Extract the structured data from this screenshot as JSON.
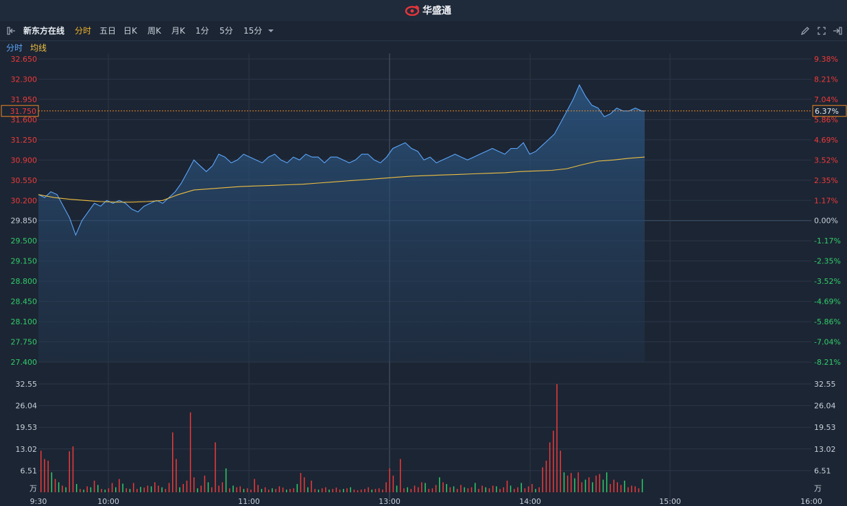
{
  "header": {
    "brand": "华盛通"
  },
  "toolbar": {
    "stock_name": "新东方在线",
    "tabs": [
      "分时",
      "五日",
      "日K",
      "周K",
      "月K",
      "1分",
      "5分",
      "15分"
    ],
    "active_tab": "分时"
  },
  "legend": {
    "intraday": "分时",
    "avg": "均线"
  },
  "colors": {
    "up": "#f03a3a",
    "down": "#2fcf6a",
    "price_line": "#5ba8ff",
    "avg_line": "#f0c040",
    "crosshair": "#f08a24"
  },
  "chart_data": {
    "type": "line",
    "price_axis": {
      "ticks": [
        "32.650",
        "32.300",
        "31.950",
        "31.600",
        "31.250",
        "30.900",
        "30.550",
        "30.200",
        "29.850",
        "29.500",
        "29.150",
        "28.800",
        "28.450",
        "28.100",
        "27.750",
        "27.400"
      ],
      "values": [
        32.65,
        32.3,
        31.95,
        31.6,
        31.25,
        30.9,
        30.55,
        30.2,
        29.85,
        29.5,
        29.15,
        28.8,
        28.45,
        28.1,
        27.75,
        27.4
      ],
      "prev_close": 29.85
    },
    "pct_axis": {
      "ticks": [
        "9.38%",
        "8.21%",
        "7.04%",
        "5.86%",
        "4.69%",
        "3.52%",
        "2.35%",
        "1.17%",
        "0.00%",
        "-1.17%",
        "-2.35%",
        "-3.52%",
        "-4.69%",
        "-5.86%",
        "-7.04%",
        "-8.21%"
      ]
    },
    "volume_axis": {
      "ticks": [
        "32.55",
        "26.04",
        "19.53",
        "13.02",
        "6.51",
        "万"
      ],
      "max": 32.55
    },
    "x_axis": {
      "labels": [
        "9:30",
        "10:00",
        "11:00",
        "13:00",
        "14:00",
        "15:00",
        "16:00"
      ]
    },
    "crosshair": {
      "price": "31.750",
      "pct": "6.37%"
    },
    "series": [
      {
        "name": "分时",
        "points": [
          [
            0,
            30.3
          ],
          [
            2,
            30.25
          ],
          [
            4,
            30.35
          ],
          [
            6,
            30.3
          ],
          [
            8,
            30.1
          ],
          [
            10,
            29.9
          ],
          [
            12,
            29.6
          ],
          [
            14,
            29.85
          ],
          [
            16,
            30.0
          ],
          [
            18,
            30.15
          ],
          [
            20,
            30.1
          ],
          [
            22,
            30.2
          ],
          [
            24,
            30.15
          ],
          [
            26,
            30.2
          ],
          [
            28,
            30.15
          ],
          [
            30,
            30.05
          ],
          [
            32,
            30.0
          ],
          [
            34,
            30.1
          ],
          [
            36,
            30.15
          ],
          [
            38,
            30.2
          ],
          [
            40,
            30.15
          ],
          [
            42,
            30.25
          ],
          [
            44,
            30.35
          ],
          [
            46,
            30.5
          ],
          [
            48,
            30.7
          ],
          [
            50,
            30.9
          ],
          [
            52,
            30.8
          ],
          [
            54,
            30.7
          ],
          [
            56,
            30.8
          ],
          [
            58,
            31.0
          ],
          [
            60,
            30.95
          ],
          [
            62,
            30.85
          ],
          [
            64,
            30.9
          ],
          [
            66,
            31.0
          ],
          [
            68,
            30.95
          ],
          [
            70,
            30.9
          ],
          [
            72,
            30.85
          ],
          [
            74,
            30.95
          ],
          [
            76,
            31.0
          ],
          [
            78,
            30.9
          ],
          [
            80,
            30.85
          ],
          [
            82,
            30.95
          ],
          [
            84,
            30.9
          ],
          [
            86,
            31.0
          ],
          [
            88,
            30.95
          ],
          [
            90,
            30.95
          ],
          [
            92,
            30.85
          ],
          [
            94,
            30.95
          ],
          [
            96,
            30.95
          ],
          [
            98,
            30.9
          ],
          [
            100,
            30.85
          ],
          [
            102,
            30.9
          ],
          [
            104,
            31.0
          ],
          [
            106,
            31.0
          ],
          [
            108,
            30.9
          ],
          [
            110,
            30.85
          ],
          [
            112,
            30.95
          ],
          [
            114,
            31.1
          ],
          [
            116,
            31.15
          ],
          [
            118,
            31.2
          ],
          [
            120,
            31.1
          ],
          [
            122,
            31.05
          ],
          [
            124,
            30.9
          ],
          [
            126,
            30.95
          ],
          [
            128,
            30.85
          ],
          [
            130,
            30.9
          ],
          [
            132,
            30.95
          ],
          [
            134,
            31.0
          ],
          [
            136,
            30.95
          ],
          [
            138,
            30.9
          ],
          [
            140,
            30.95
          ],
          [
            142,
            31.0
          ],
          [
            144,
            31.05
          ],
          [
            146,
            31.1
          ],
          [
            148,
            31.05
          ],
          [
            150,
            31.0
          ],
          [
            152,
            31.1
          ],
          [
            154,
            31.1
          ],
          [
            156,
            31.2
          ],
          [
            158,
            31.0
          ],
          [
            160,
            31.05
          ],
          [
            162,
            31.15
          ],
          [
            164,
            31.25
          ],
          [
            166,
            31.35
          ],
          [
            168,
            31.55
          ],
          [
            170,
            31.75
          ],
          [
            172,
            31.95
          ],
          [
            174,
            32.2
          ],
          [
            176,
            32.0
          ],
          [
            178,
            31.85
          ],
          [
            180,
            31.8
          ],
          [
            182,
            31.65
          ],
          [
            184,
            31.7
          ],
          [
            186,
            31.8
          ],
          [
            188,
            31.75
          ],
          [
            190,
            31.75
          ],
          [
            192,
            31.8
          ],
          [
            194,
            31.75
          ],
          [
            195,
            31.75
          ]
        ]
      },
      {
        "name": "均线",
        "points": [
          [
            0,
            30.3
          ],
          [
            5,
            30.25
          ],
          [
            10,
            30.22
          ],
          [
            15,
            30.2
          ],
          [
            20,
            30.18
          ],
          [
            25,
            30.17
          ],
          [
            30,
            30.17
          ],
          [
            35,
            30.18
          ],
          [
            40,
            30.2
          ],
          [
            45,
            30.3
          ],
          [
            50,
            30.38
          ],
          [
            55,
            30.4
          ],
          [
            60,
            30.42
          ],
          [
            65,
            30.44
          ],
          [
            70,
            30.45
          ],
          [
            75,
            30.46
          ],
          [
            80,
            30.47
          ],
          [
            85,
            30.48
          ],
          [
            90,
            30.5
          ],
          [
            95,
            30.52
          ],
          [
            100,
            30.54
          ],
          [
            105,
            30.56
          ],
          [
            110,
            30.58
          ],
          [
            115,
            30.6
          ],
          [
            120,
            30.62
          ],
          [
            125,
            30.63
          ],
          [
            130,
            30.64
          ],
          [
            135,
            30.65
          ],
          [
            140,
            30.66
          ],
          [
            145,
            30.67
          ],
          [
            150,
            30.68
          ],
          [
            155,
            30.7
          ],
          [
            160,
            30.71
          ],
          [
            165,
            30.72
          ],
          [
            170,
            30.75
          ],
          [
            175,
            30.82
          ],
          [
            180,
            30.88
          ],
          [
            185,
            30.9
          ],
          [
            190,
            30.93
          ],
          [
            195,
            30.95
          ]
        ]
      }
    ],
    "volume": [
      [
        12.5,
        1
      ],
      [
        10.0,
        1
      ],
      [
        9.5,
        1
      ],
      [
        6.0,
        0
      ],
      [
        4.0,
        1
      ],
      [
        3.0,
        0
      ],
      [
        2.0,
        1
      ],
      [
        1.5,
        0
      ],
      [
        12.3,
        1
      ],
      [
        13.8,
        1
      ],
      [
        2.5,
        0
      ],
      [
        1.0,
        1
      ],
      [
        0.8,
        0
      ],
      [
        1.8,
        1
      ],
      [
        1.5,
        0
      ],
      [
        3.5,
        1
      ],
      [
        2.2,
        0
      ],
      [
        1.0,
        1
      ],
      [
        0.8,
        0
      ],
      [
        1.2,
        1
      ],
      [
        2.8,
        1
      ],
      [
        1.5,
        0
      ],
      [
        4.0,
        1
      ],
      [
        2.6,
        0
      ],
      [
        1.2,
        1
      ],
      [
        1.0,
        0
      ],
      [
        2.8,
        1
      ],
      [
        1.0,
        1
      ],
      [
        1.6,
        0
      ],
      [
        1.4,
        1
      ],
      [
        2.0,
        1
      ],
      [
        1.8,
        0
      ],
      [
        3.0,
        1
      ],
      [
        2.0,
        1
      ],
      [
        1.5,
        0
      ],
      [
        1.0,
        1
      ],
      [
        2.8,
        1
      ],
      [
        18.0,
        1
      ],
      [
        10.0,
        1
      ],
      [
        1.5,
        0
      ],
      [
        2.5,
        1
      ],
      [
        3.5,
        1
      ],
      [
        24.0,
        1
      ],
      [
        4.5,
        1
      ],
      [
        1.2,
        0
      ],
      [
        2.0,
        1
      ],
      [
        5.0,
        1
      ],
      [
        3.0,
        0
      ],
      [
        1.5,
        1
      ],
      [
        15.0,
        1
      ],
      [
        2.0,
        1
      ],
      [
        3.0,
        1
      ],
      [
        7.2,
        0
      ],
      [
        1.2,
        1
      ],
      [
        2.0,
        0
      ],
      [
        1.5,
        1
      ],
      [
        1.8,
        1
      ],
      [
        1.0,
        0
      ],
      [
        1.2,
        1
      ],
      [
        0.8,
        1
      ],
      [
        4.0,
        1
      ],
      [
        2.2,
        1
      ],
      [
        1.0,
        0
      ],
      [
        1.5,
        1
      ],
      [
        0.8,
        1
      ],
      [
        1.2,
        0
      ],
      [
        1.0,
        1
      ],
      [
        1.8,
        1
      ],
      [
        1.4,
        1
      ],
      [
        0.8,
        0
      ],
      [
        1.0,
        1
      ],
      [
        1.2,
        1
      ],
      [
        2.5,
        0
      ],
      [
        5.8,
        1
      ],
      [
        4.5,
        1
      ],
      [
        1.5,
        0
      ],
      [
        3.5,
        1
      ],
      [
        1.0,
        1
      ],
      [
        0.8,
        0
      ],
      [
        1.2,
        1
      ],
      [
        1.5,
        1
      ],
      [
        0.8,
        0
      ],
      [
        1.0,
        1
      ],
      [
        1.4,
        1
      ],
      [
        0.8,
        1
      ],
      [
        1.0,
        0
      ],
      [
        1.2,
        1
      ],
      [
        1.5,
        0
      ],
      [
        0.8,
        1
      ],
      [
        0.6,
        1
      ],
      [
        0.8,
        1
      ],
      [
        1.0,
        1
      ],
      [
        1.5,
        1
      ],
      [
        0.8,
        0
      ],
      [
        1.0,
        1
      ],
      [
        1.2,
        1
      ],
      [
        0.8,
        1
      ],
      [
        3.0,
        1
      ],
      [
        7.2,
        1
      ],
      [
        5.0,
        1
      ],
      [
        2.0,
        0
      ],
      [
        10.0,
        1
      ],
      [
        1.2,
        1
      ],
      [
        1.5,
        0
      ],
      [
        1.0,
        1
      ],
      [
        2.0,
        1
      ],
      [
        1.5,
        1
      ],
      [
        3.0,
        1
      ],
      [
        2.8,
        0
      ],
      [
        1.0,
        1
      ],
      [
        1.2,
        1
      ],
      [
        2.2,
        1
      ],
      [
        4.5,
        0
      ],
      [
        3.0,
        1
      ],
      [
        2.5,
        0
      ],
      [
        1.5,
        1
      ],
      [
        1.8,
        0
      ],
      [
        1.0,
        1
      ],
      [
        2.2,
        1
      ],
      [
        1.5,
        0
      ],
      [
        1.2,
        1
      ],
      [
        1.5,
        1
      ],
      [
        2.8,
        0
      ],
      [
        1.0,
        1
      ],
      [
        2.0,
        1
      ],
      [
        1.5,
        0
      ],
      [
        1.2,
        1
      ],
      [
        2.0,
        1
      ],
      [
        1.8,
        0
      ],
      [
        1.0,
        1
      ],
      [
        1.5,
        1
      ],
      [
        3.5,
        1
      ],
      [
        2.0,
        0
      ],
      [
        1.0,
        1
      ],
      [
        1.5,
        1
      ],
      [
        2.8,
        0
      ],
      [
        1.2,
        1
      ],
      [
        1.8,
        1
      ],
      [
        2.5,
        1
      ],
      [
        1.0,
        0
      ],
      [
        1.5,
        1
      ],
      [
        7.5,
        1
      ],
      [
        9.5,
        1
      ],
      [
        15.0,
        1
      ],
      [
        18.5,
        1
      ],
      [
        32.5,
        1
      ],
      [
        12.5,
        1
      ],
      [
        6.0,
        0
      ],
      [
        5.0,
        1
      ],
      [
        5.8,
        1
      ],
      [
        4.2,
        0
      ],
      [
        6.0,
        1
      ],
      [
        3.0,
        1
      ],
      [
        3.8,
        0
      ],
      [
        4.5,
        1
      ],
      [
        3.0,
        0
      ],
      [
        5.0,
        1
      ],
      [
        5.5,
        1
      ],
      [
        3.8,
        0
      ],
      [
        6.0,
        0
      ],
      [
        2.5,
        1
      ],
      [
        3.8,
        1
      ],
      [
        3.0,
        1
      ],
      [
        2.2,
        1
      ],
      [
        3.5,
        0
      ],
      [
        1.5,
        1
      ],
      [
        2.0,
        1
      ],
      [
        1.8,
        1
      ],
      [
        1.2,
        1
      ],
      [
        4.0,
        0
      ]
    ]
  }
}
